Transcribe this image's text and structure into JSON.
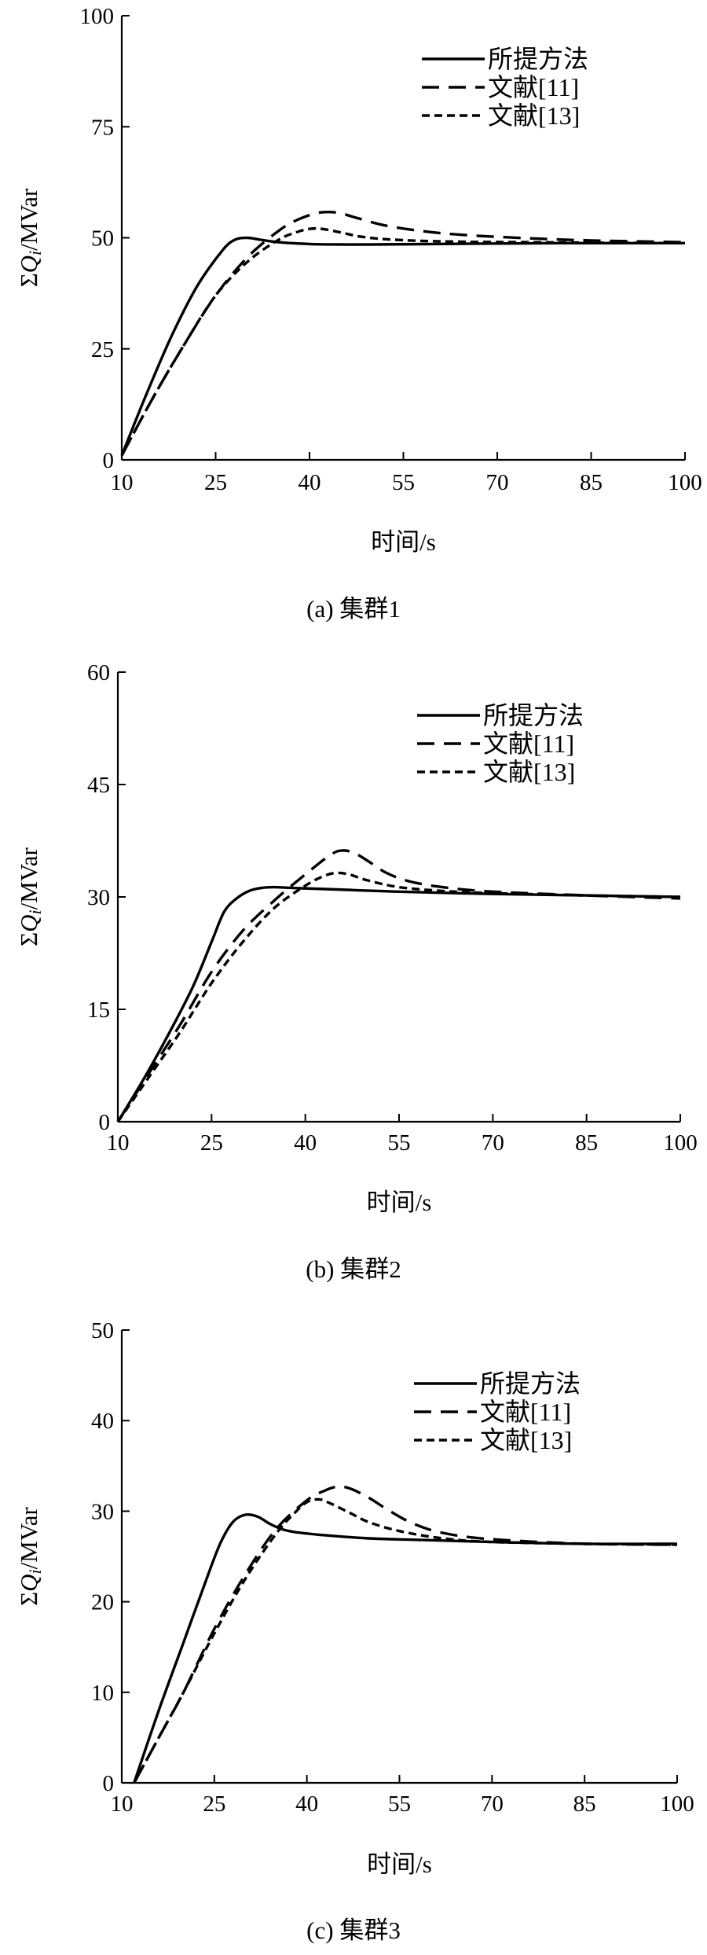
{
  "chart_data": [
    {
      "type": "line",
      "caption": "(a) 集群1",
      "xlabel": "时间/s",
      "ylabel": "ΣQi/MVar",
      "xlim": [
        10,
        100
      ],
      "ylim": [
        0,
        100
      ],
      "xticks": [
        10,
        25,
        40,
        55,
        70,
        85,
        100
      ],
      "yticks": [
        0,
        25,
        50,
        75,
        100
      ],
      "legend_position": "top-right",
      "grid": false,
      "series": [
        {
          "name": "所提方法",
          "dash": "none",
          "x": [
            10,
            14,
            18,
            22,
            26,
            28,
            30,
            32,
            35,
            40,
            45,
            50,
            60,
            70,
            80,
            90,
            100
          ],
          "y": [
            1,
            15,
            28,
            39,
            47,
            49.5,
            50,
            49.6,
            49,
            48.6,
            48.5,
            48.5,
            48.6,
            48.7,
            48.8,
            48.8,
            48.8
          ]
        },
        {
          "name": "文献[11]",
          "dash": "22,12",
          "x": [
            10,
            15,
            20,
            25,
            30,
            35,
            38,
            41,
            43,
            45,
            48,
            52,
            58,
            65,
            75,
            85,
            100
          ],
          "y": [
            1,
            14,
            26,
            37,
            45.5,
            51.5,
            54,
            55.5,
            55.8,
            55.5,
            54.3,
            52.8,
            51.5,
            50.6,
            49.9,
            49.4,
            49
          ]
        },
        {
          "name": "文献[13]",
          "dash": "10,6",
          "x": [
            10,
            15,
            20,
            25,
            30,
            35,
            38,
            40,
            42,
            45,
            48,
            52,
            58,
            65,
            75,
            85,
            100
          ],
          "y": [
            1,
            14,
            26,
            37,
            44.5,
            49.5,
            51.3,
            52,
            52,
            51.2,
            50.3,
            49.7,
            49.3,
            49.1,
            49,
            48.9,
            48.8
          ]
        }
      ]
    },
    {
      "type": "line",
      "caption": "(b) 集群2",
      "xlabel": "时间/s",
      "ylabel": "ΣQi/MVar",
      "xlim": [
        10,
        100
      ],
      "ylim": [
        0,
        60
      ],
      "xticks": [
        10,
        25,
        40,
        55,
        70,
        85,
        100
      ],
      "yticks": [
        0,
        15,
        30,
        45,
        60
      ],
      "legend_position": "top-right",
      "grid": false,
      "series": [
        {
          "name": "所提方法",
          "dash": "none",
          "x": [
            10,
            14,
            18,
            22,
            25,
            27,
            29,
            31,
            33,
            35,
            38,
            45,
            55,
            70,
            85,
            100
          ],
          "y": [
            0,
            5.5,
            11.5,
            18,
            24,
            28,
            29.8,
            30.8,
            31.2,
            31.3,
            31.2,
            31,
            30.7,
            30.4,
            30.2,
            30
          ]
        },
        {
          "name": "文献[11]",
          "dash": "22,12",
          "x": [
            10,
            15,
            20,
            25,
            30,
            35,
            40,
            44,
            46,
            48,
            50,
            53,
            57,
            63,
            70,
            85,
            100
          ],
          "y": [
            0,
            6.5,
            13,
            20,
            25.5,
            29.5,
            33,
            35.6,
            36.2,
            35.8,
            34.8,
            33.2,
            32,
            31.2,
            30.7,
            30.2,
            29.8
          ]
        },
        {
          "name": "文献[13]",
          "dash": "10,6",
          "x": [
            10,
            15,
            20,
            25,
            30,
            35,
            40,
            43,
            45,
            47,
            50,
            55,
            62,
            70,
            85,
            100
          ],
          "y": [
            0,
            6,
            12,
            18.5,
            24,
            28.5,
            31.5,
            32.8,
            33.2,
            33,
            32.2,
            31.3,
            30.8,
            30.5,
            30.2,
            30
          ]
        }
      ]
    },
    {
      "type": "line",
      "caption": "(c) 集群3",
      "xlabel": "时间/s",
      "ylabel": "ΣQi/MVar",
      "xlim": [
        10,
        100
      ],
      "ylim": [
        0,
        50
      ],
      "xticks": [
        10,
        25,
        40,
        55,
        70,
        85,
        100
      ],
      "yticks": [
        0,
        10,
        20,
        30,
        40,
        50
      ],
      "legend_position": "top-right",
      "grid": false,
      "series": [
        {
          "name": "所提方法",
          "dash": "none",
          "x": [
            12,
            16,
            20,
            24,
            26,
            28,
            30,
            32,
            34,
            36,
            38,
            42,
            50,
            60,
            70,
            85,
            100
          ],
          "y": [
            0,
            8,
            15.5,
            23,
            26.5,
            28.8,
            29.6,
            29.4,
            28.6,
            28,
            27.7,
            27.4,
            27,
            26.8,
            26.6,
            26.4,
            26.4
          ]
        },
        {
          "name": "文献[11]",
          "dash": "22,12",
          "x": [
            12,
            16,
            20,
            25,
            30,
            35,
            40,
            43,
            45,
            47,
            50,
            53,
            57,
            62,
            70,
            85,
            100
          ],
          "y": [
            0,
            5,
            10,
            17,
            23,
            28,
            31.2,
            32.3,
            32.7,
            32.5,
            31.5,
            30.2,
            28.7,
            27.6,
            26.9,
            26.4,
            26.3
          ]
        },
        {
          "name": "文献[13]",
          "dash": "10,6",
          "x": [
            12,
            16,
            20,
            25,
            30,
            35,
            38,
            40,
            42,
            44,
            47,
            50,
            55,
            62,
            70,
            85,
            100
          ],
          "y": [
            0,
            5,
            10,
            16.5,
            22.5,
            27.5,
            29.8,
            31,
            31.3,
            30.8,
            29.8,
            28.8,
            27.8,
            27,
            26.6,
            26.4,
            26.3
          ]
        }
      ]
    }
  ]
}
